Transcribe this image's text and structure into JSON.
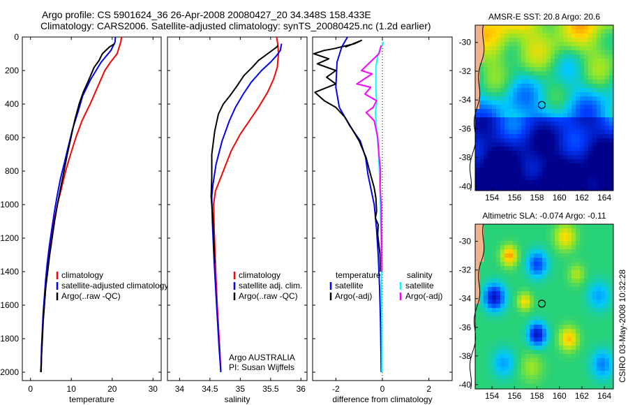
{
  "header": {
    "title_line1": "Argo profile: CS 5901624_36 26-Apr-2008 20080427_20 34.348S 158.433E",
    "title_line2": "Climatology: CARS2006. Satellite-adjusted climatology: synTS_20080425.nc (1.2d earlier)"
  },
  "stamp": "CSIRO 03-May-2008 10:32:28",
  "colors": {
    "red": "#ff0000",
    "blue": "#0000ff",
    "black": "#000000",
    "cyan": "#00ffff",
    "magenta": "#ff00ff",
    "land": "#f2b48c"
  },
  "chart_data": [
    {
      "type": "line",
      "name": "temperature",
      "xlabel": "temperature",
      "xlim": [
        -2,
        32
      ],
      "xticks": [
        0,
        10,
        20,
        30
      ],
      "ylim": [
        0,
        2050
      ],
      "yticks": [
        0,
        200,
        400,
        600,
        800,
        1000,
        1200,
        1400,
        1600,
        1800,
        2000
      ],
      "y_inverted": true,
      "legend": [
        "climatology",
        "satellite-adjusted climatology",
        "Argo(..raw -QC)"
      ],
      "series": [
        {
          "name": "climatology",
          "color": "red",
          "points": [
            [
              22.3,
              0
            ],
            [
              22.1,
              30
            ],
            [
              21.2,
              100
            ],
            [
              19.6,
              150
            ],
            [
              18.2,
              200
            ],
            [
              16.4,
              300
            ],
            [
              14.6,
              400
            ],
            [
              12.6,
              500
            ],
            [
              11.1,
              600
            ],
            [
              9.8,
              700
            ],
            [
              8.6,
              800
            ],
            [
              7.6,
              900
            ],
            [
              6.6,
              1000
            ],
            [
              5.8,
              1100
            ],
            [
              5.1,
              1200
            ],
            [
              4.6,
              1300
            ],
            [
              4.1,
              1400
            ],
            [
              3.7,
              1500
            ],
            [
              3.4,
              1600
            ],
            [
              3.1,
              1700
            ],
            [
              2.9,
              1800
            ],
            [
              2.7,
              1900
            ],
            [
              2.6,
              2000
            ]
          ]
        },
        {
          "name": "satellite-adjusted climatology",
          "color": "blue",
          "points": [
            [
              20.8,
              0
            ],
            [
              20.7,
              30
            ],
            [
              19.7,
              80
            ],
            [
              17.3,
              150
            ],
            [
              14.8,
              250
            ],
            [
              12.8,
              350
            ],
            [
              11.6,
              450
            ],
            [
              10.3,
              550
            ],
            [
              9.3,
              650
            ],
            [
              8.3,
              750
            ],
            [
              7.3,
              850
            ],
            [
              6.5,
              950
            ],
            [
              5.8,
              1050
            ],
            [
              5.2,
              1150
            ],
            [
              4.6,
              1250
            ],
            [
              4.1,
              1350
            ],
            [
              3.7,
              1450
            ],
            [
              3.4,
              1550
            ],
            [
              3.1,
              1650
            ],
            [
              2.9,
              1750
            ],
            [
              2.7,
              1850
            ],
            [
              2.6,
              1950
            ],
            [
              2.5,
              2000
            ]
          ]
        },
        {
          "name": "Argo(..raw -QC)",
          "color": "black",
          "points": [
            [
              20.6,
              40
            ],
            [
              19.3,
              60
            ],
            [
              17.6,
              100
            ],
            [
              16.8,
              140
            ],
            [
              15.6,
              180
            ],
            [
              14.2,
              260
            ],
            [
              12.9,
              330
            ],
            [
              11.9,
              400
            ],
            [
              10.8,
              500
            ],
            [
              9.9,
              600
            ],
            [
              9.0,
              700
            ],
            [
              8.2,
              800
            ],
            [
              7.4,
              900
            ],
            [
              6.6,
              1000
            ],
            [
              5.9,
              1100
            ],
            [
              5.3,
              1200
            ],
            [
              4.7,
              1300
            ],
            [
              4.2,
              1400
            ],
            [
              3.7,
              1500
            ],
            [
              3.4,
              1600
            ],
            [
              3.1,
              1700
            ],
            [
              2.9,
              1800
            ],
            [
              2.7,
              1900
            ],
            [
              2.6,
              2000
            ]
          ]
        }
      ]
    },
    {
      "type": "line",
      "name": "salinity",
      "xlabel": "salinity",
      "xlim": [
        33.8,
        36.1
      ],
      "xticks": [
        34,
        34.5,
        35,
        35.5,
        36
      ],
      "ylim": [
        0,
        2050
      ],
      "yticks": [
        0,
        200,
        400,
        600,
        800,
        1000,
        1200,
        1400,
        1600,
        1800,
        2000
      ],
      "y_inverted": true,
      "legend": [
        "climatology",
        "satellite adj. clim.",
        "Argo(..raw -QC)"
      ],
      "annotation": [
        "Argo AUSTRALIA",
        "PI: Susan Wijffels"
      ],
      "series": [
        {
          "name": "climatology",
          "color": "red",
          "points": [
            [
              35.6,
              0
            ],
            [
              35.62,
              50
            ],
            [
              35.63,
              100
            ],
            [
              35.61,
              180
            ],
            [
              35.55,
              250
            ],
            [
              35.45,
              330
            ],
            [
              35.3,
              420
            ],
            [
              35.15,
              500
            ],
            [
              35.0,
              580
            ],
            [
              34.85,
              680
            ],
            [
              34.72,
              800
            ],
            [
              34.59,
              920
            ],
            [
              34.56,
              1000
            ],
            [
              34.57,
              1150
            ],
            [
              34.59,
              1350
            ],
            [
              34.62,
              1600
            ],
            [
              34.66,
              1850
            ],
            [
              34.68,
              2000
            ]
          ]
        },
        {
          "name": "satellite adj. clim.",
          "color": "blue",
          "points": [
            [
              35.68,
              40
            ],
            [
              35.66,
              80
            ],
            [
              35.6,
              110
            ],
            [
              35.5,
              150
            ],
            [
              35.35,
              200
            ],
            [
              35.18,
              270
            ],
            [
              35.05,
              340
            ],
            [
              34.92,
              420
            ],
            [
              34.82,
              500
            ],
            [
              34.7,
              620
            ],
            [
              34.6,
              760
            ],
            [
              34.55,
              880
            ],
            [
              34.53,
              950
            ],
            [
              34.54,
              1100
            ],
            [
              34.57,
              1350
            ],
            [
              34.61,
              1600
            ],
            [
              34.65,
              1850
            ],
            [
              34.68,
              2000
            ]
          ]
        },
        {
          "name": "Argo(..raw -QC)",
          "color": "black",
          "points": [
            [
              35.62,
              50
            ],
            [
              35.6,
              60
            ],
            [
              35.45,
              100
            ],
            [
              35.3,
              140
            ],
            [
              35.2,
              180
            ],
            [
              35.06,
              230
            ],
            [
              34.95,
              290
            ],
            [
              34.83,
              350
            ],
            [
              34.72,
              400
            ],
            [
              34.64,
              460
            ],
            [
              34.58,
              560
            ],
            [
              34.53,
              700
            ],
            [
              34.53,
              840
            ],
            [
              34.52,
              950
            ],
            [
              34.55,
              1100
            ],
            [
              34.58,
              1350
            ]
          ]
        }
      ]
    },
    {
      "type": "line",
      "name": "difference",
      "xlabel": "difference from climatology",
      "xlim": [
        -3,
        3
      ],
      "xticks": [
        -2,
        0,
        2
      ],
      "ylim": [
        0,
        2050
      ],
      "yticks": [
        0,
        200,
        400,
        600,
        800,
        1000,
        1200,
        1400,
        1600,
        1800,
        2000
      ],
      "y_inverted": true,
      "legend_left": [
        "temperature",
        "satellite",
        "Argo(-adj)"
      ],
      "legend_right": [
        "salinity",
        "satellite",
        "Argo(-adj)"
      ],
      "series": [
        {
          "name": "temperature satellite",
          "color": "blue",
          "points": [
            [
              -1.5,
              0
            ],
            [
              -1.75,
              60
            ],
            [
              -1.95,
              150
            ],
            [
              -2.0,
              300
            ],
            [
              -1.85,
              420
            ],
            [
              -1.4,
              530
            ],
            [
              -0.95,
              620
            ],
            [
              -0.72,
              720
            ],
            [
              -0.62,
              820
            ],
            [
              -0.5,
              900
            ],
            [
              -0.35,
              1000
            ],
            [
              -0.25,
              1150
            ],
            [
              -0.18,
              1300
            ],
            [
              -0.12,
              1500
            ],
            [
              -0.08,
              1700
            ],
            [
              -0.06,
              1900
            ],
            [
              -0.05,
              2000
            ]
          ]
        },
        {
          "name": "temperature Argo(-adj)",
          "color": "black",
          "points": [
            [
              -1.6,
              60
            ],
            [
              -0.9,
              20
            ],
            [
              -1.2,
              40
            ],
            [
              -2.1,
              70
            ],
            [
              -2.5,
              80
            ],
            [
              -2.95,
              100
            ],
            [
              -2.3,
              130
            ],
            [
              -2.8,
              160
            ],
            [
              -2.0,
              200
            ],
            [
              -2.4,
              240
            ],
            [
              -2.0,
              280
            ],
            [
              -2.9,
              330
            ],
            [
              -2.5,
              380
            ],
            [
              -2.0,
              420
            ],
            [
              -1.6,
              480
            ],
            [
              -1.0,
              620
            ],
            [
              -0.7,
              720
            ],
            [
              -0.55,
              800
            ],
            [
              -0.35,
              900
            ],
            [
              -0.28,
              960
            ],
            [
              -0.25,
              1040
            ],
            [
              -0.3,
              1080
            ],
            [
              -0.18,
              1120
            ],
            [
              -0.2,
              1180
            ],
            [
              -0.1,
              1300
            ],
            [
              -0.08,
              1400
            ]
          ]
        },
        {
          "name": "salinity satellite",
          "color": "cyan",
          "points": [
            [
              0.05,
              30
            ],
            [
              -0.05,
              60
            ],
            [
              -0.2,
              110
            ],
            [
              -0.28,
              180
            ],
            [
              -0.28,
              300
            ],
            [
              -0.25,
              400
            ],
            [
              -0.3,
              450
            ],
            [
              -0.25,
              550
            ],
            [
              -0.18,
              650
            ],
            [
              -0.13,
              800
            ],
            [
              -0.08,
              1000
            ],
            [
              -0.06,
              1200
            ],
            [
              -0.04,
              1400
            ],
            [
              -0.03,
              1600
            ],
            [
              -0.02,
              1800
            ],
            [
              -0.02,
              2000
            ]
          ]
        },
        {
          "name": "salinity Argo(-adj)",
          "color": "magenta",
          "points": [
            [
              -0.05,
              50
            ],
            [
              -0.15,
              100
            ],
            [
              -0.9,
              200
            ],
            [
              -0.45,
              220
            ],
            [
              -1.1,
              280
            ],
            [
              -0.5,
              300
            ],
            [
              -0.75,
              340
            ],
            [
              -0.25,
              380
            ],
            [
              -0.4,
              420
            ],
            [
              -0.7,
              450
            ],
            [
              -0.35,
              500
            ],
            [
              -0.2,
              600
            ],
            [
              -0.15,
              700
            ],
            [
              -0.08,
              800
            ],
            [
              -0.1,
              900
            ],
            [
              -0.05,
              1000
            ],
            [
              -0.05,
              1100
            ],
            [
              -0.03,
              1200
            ],
            [
              -0.03,
              1300
            ],
            [
              -0.02,
              1400
            ]
          ]
        }
      ]
    },
    {
      "type": "heatmap",
      "name": "sst-map",
      "title": "AMSR-E SST: 20.8 Argo: 20.6",
      "xlim": [
        152.5,
        164.8
      ],
      "xticks": [
        154,
        156,
        158,
        160,
        162,
        164
      ],
      "ylim": [
        -40.3,
        -28.8
      ],
      "yticks": [
        -30,
        -32,
        -34,
        -36,
        -38,
        -40
      ],
      "argo_position": [
        158.433,
        -34.348
      ]
    },
    {
      "type": "heatmap",
      "name": "sla-map",
      "title": "Altimetric SLA: -0.074 Argo: -0.11",
      "xlim": [
        152.5,
        164.8
      ],
      "xticks": [
        154,
        156,
        158,
        160,
        162,
        164
      ],
      "ylim": [
        -40.3,
        -28.8
      ],
      "yticks": [
        -30,
        -32,
        -34,
        -36,
        -38,
        -40
      ],
      "argo_position": [
        158.433,
        -34.348
      ]
    }
  ]
}
